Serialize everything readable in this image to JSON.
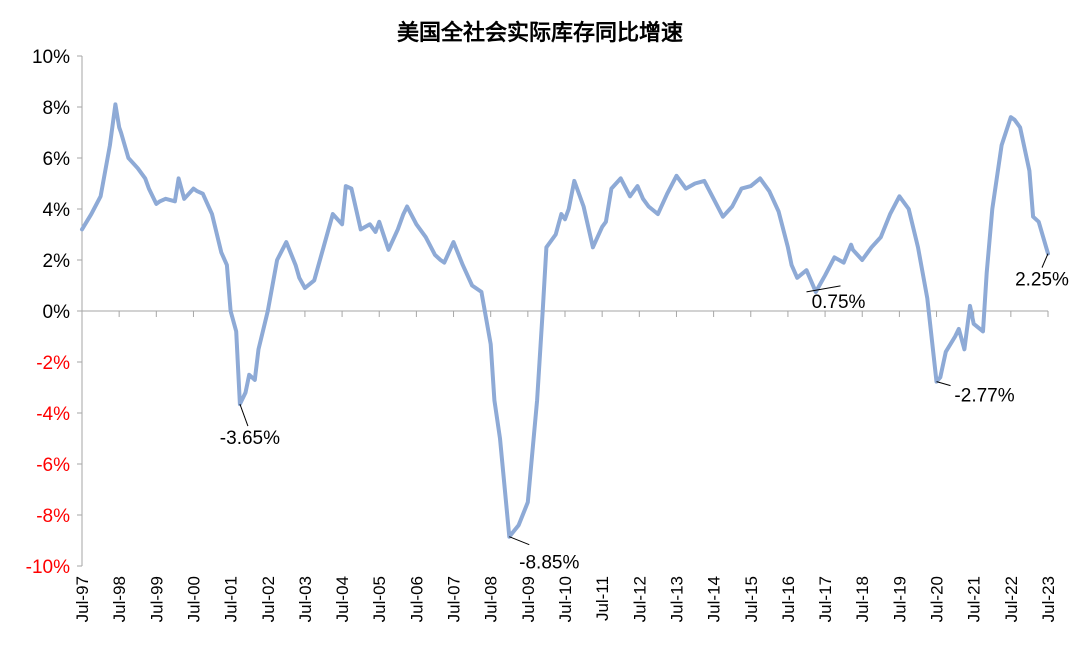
{
  "chart_data": {
    "type": "line",
    "title": "美国全社会实际库存同比增速",
    "xlabel": "",
    "ylabel": "",
    "ylim": [
      -10,
      10
    ],
    "y_ticks": [
      "10%",
      "8%",
      "6%",
      "4%",
      "2%",
      "0%",
      "-2%",
      "-4%",
      "-6%",
      "-8%",
      "-10%"
    ],
    "y_tick_values": [
      10,
      8,
      6,
      4,
      2,
      0,
      -2,
      -4,
      -6,
      -8,
      -10
    ],
    "x_ticks": [
      "Jul-97",
      "Jul-98",
      "Jul-99",
      "Jul-00",
      "Jul-01",
      "Jul-02",
      "Jul-03",
      "Jul-04",
      "Jul-05",
      "Jul-06",
      "Jul-07",
      "Jul-08",
      "Jul-09",
      "Jul-10",
      "Jul-11",
      "Jul-12",
      "Jul-13",
      "Jul-14",
      "Jul-15",
      "Jul-16",
      "Jul-17",
      "Jul-18",
      "Jul-19",
      "Jul-20",
      "Jul-21",
      "Jul-22",
      "Jul-23"
    ],
    "grid": false,
    "legend": "none",
    "colors": {
      "line": "#8EAAD6",
      "negative_tick": "#FF0000",
      "positive_tick": "#000000",
      "axis": "#A6A6A6"
    },
    "series": [
      {
        "x": [
          1997.5,
          1997.75,
          1998.0,
          1998.25,
          1998.4,
          1998.5,
          1998.55,
          1998.75,
          1999.0,
          1999.2,
          1999.3,
          1999.5,
          1999.6,
          1999.75,
          2000.0,
          2000.1,
          2000.25,
          2000.5,
          2000.6,
          2000.75,
          2001.0,
          2001.25,
          2001.4,
          2001.5,
          2001.65,
          2001.75,
          2001.9,
          2002.0,
          2002.15,
          2002.25,
          2002.5,
          2002.75,
          2003.0,
          2003.25,
          2003.35,
          2003.5,
          2003.75,
          2004.0,
          2004.25,
          2004.5,
          2004.6,
          2004.75,
          2005.0,
          2005.25,
          2005.4,
          2005.5,
          2005.75,
          2006.0,
          2006.15,
          2006.25,
          2006.5,
          2006.75,
          2007.0,
          2007.15,
          2007.25,
          2007.5,
          2007.75,
          2008.0,
          2008.25,
          2008.5,
          2008.6,
          2008.75,
          2009.0,
          2009.25,
          2009.5,
          2009.75,
          2009.9,
          2010.0,
          2010.25,
          2010.4,
          2010.5,
          2010.6,
          2010.75,
          2011.0,
          2011.25,
          2011.5,
          2011.6,
          2011.75,
          2012.0,
          2012.25,
          2012.45,
          2012.6,
          2012.75,
          2013.0,
          2013.25,
          2013.5,
          2013.75,
          2014.0,
          2014.25,
          2014.5,
          2014.75,
          2015.0,
          2015.25,
          2015.5,
          2015.75,
          2016.0,
          2016.25,
          2016.5,
          2016.6,
          2016.75,
          2017.0,
          2017.25,
          2017.5,
          2017.75,
          2018.0,
          2018.2,
          2018.25,
          2018.5,
          2018.75,
          2019.0,
          2019.25,
          2019.5,
          2019.75,
          2020.0,
          2020.25,
          2020.5,
          2020.6,
          2020.75,
          2021.0,
          2021.1,
          2021.25,
          2021.4,
          2021.5,
          2021.75,
          2021.85,
          2022.0,
          2022.25,
          2022.5,
          2022.6,
          2022.75,
          2023.0,
          2023.1,
          2023.25,
          2023.5
        ],
        "values": [
          3.2,
          3.8,
          4.5,
          6.5,
          8.1,
          7.2,
          7.0,
          6.0,
          5.6,
          5.2,
          4.8,
          4.2,
          4.3,
          4.4,
          4.3,
          5.2,
          4.4,
          4.8,
          4.7,
          4.6,
          3.8,
          2.3,
          1.8,
          0.0,
          -0.8,
          -3.65,
          -3.2,
          -2.5,
          -2.7,
          -1.5,
          0.0,
          2.0,
          2.7,
          1.8,
          1.3,
          0.9,
          1.2,
          2.5,
          3.8,
          3.4,
          4.9,
          4.8,
          3.2,
          3.4,
          3.1,
          3.5,
          2.4,
          3.2,
          3.8,
          4.1,
          3.4,
          2.9,
          2.2,
          2.0,
          1.9,
          2.7,
          1.8,
          1.0,
          0.75,
          -1.3,
          -3.5,
          -5.0,
          -8.85,
          -8.4,
          -7.5,
          -3.5,
          0.0,
          2.5,
          3.0,
          3.8,
          3.6,
          4.0,
          5.1,
          4.1,
          2.5,
          3.3,
          3.5,
          4.8,
          5.2,
          4.5,
          4.9,
          4.4,
          4.1,
          3.8,
          4.6,
          5.3,
          4.8,
          5.0,
          5.1,
          4.4,
          3.7,
          4.1,
          4.8,
          4.9,
          5.2,
          4.7,
          3.9,
          2.5,
          1.8,
          1.3,
          1.6,
          0.75,
          1.4,
          2.1,
          1.9,
          2.6,
          2.4,
          2.0,
          2.5,
          2.9,
          3.8,
          4.5,
          4.0,
          2.5,
          0.5,
          -2.77,
          -2.6,
          -1.6,
          -1.0,
          -0.7,
          -1.5,
          0.2,
          -0.5,
          -0.8,
          1.5,
          4.0,
          6.5,
          7.6,
          7.5,
          7.2,
          5.5,
          3.7,
          3.5,
          2.25
        ]
      }
    ],
    "annotations": [
      {
        "label": "-3.65%",
        "x": 2001.75,
        "y": -3.65
      },
      {
        "label": "-8.85%",
        "x": 2009.0,
        "y": -8.85
      },
      {
        "label": "0.75%",
        "x": 2017.0,
        "y": 0.75
      },
      {
        "label": "-2.77%",
        "x": 2020.5,
        "y": -2.77
      },
      {
        "label": "2.25%",
        "x": 2023.5,
        "y": 2.25
      }
    ]
  }
}
